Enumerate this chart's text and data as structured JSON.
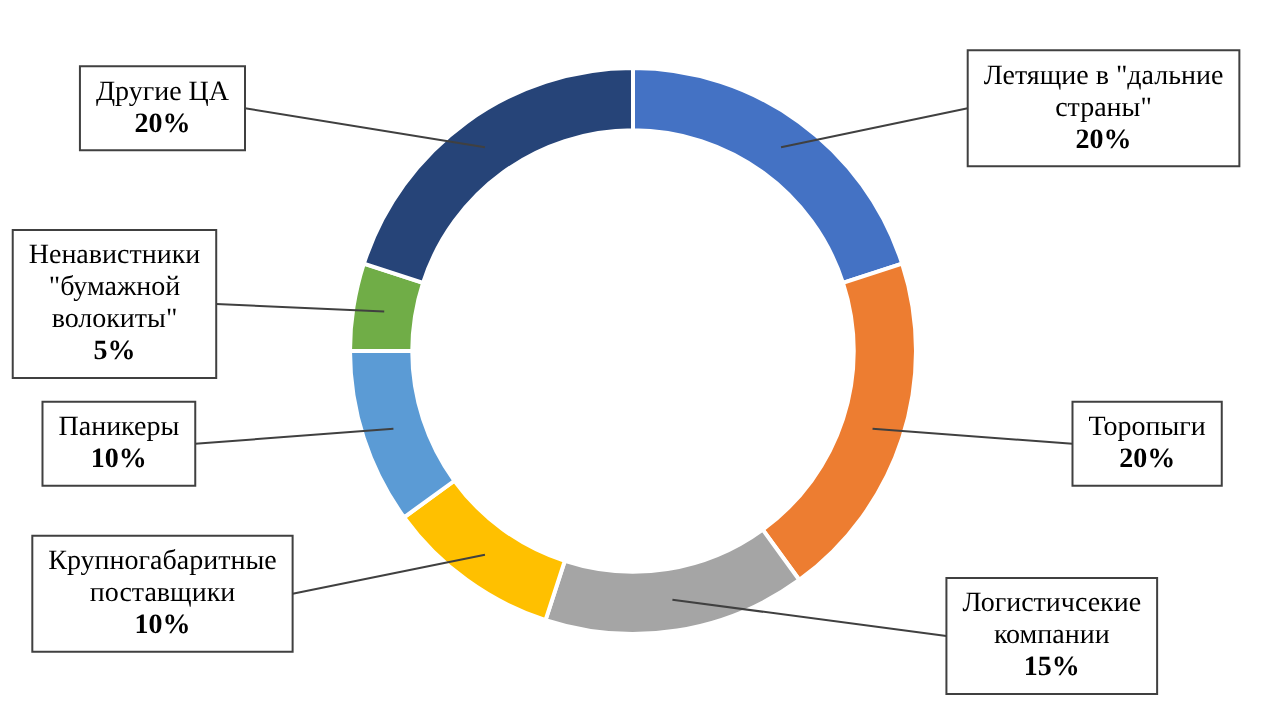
{
  "chart_data": {
    "type": "donut",
    "categories": [
      "Летящие в \"дальние страны\"",
      "Торопыги",
      "Логистичсекие компании",
      "Крупногабаритные поставщики",
      "Паникеры",
      "Ненавистники \"бумажной волокиты\"",
      "Другие ЦА"
    ],
    "values": [
      20,
      20,
      15,
      10,
      10,
      5,
      20
    ],
    "value_labels": [
      "20%",
      "20%",
      "15%",
      "10%",
      "10%",
      "5%",
      "20%"
    ],
    "colors": [
      "#4472c4",
      "#ed7d31",
      "#a5a5a5",
      "#ffc000",
      "#5b9bd5",
      "#70ad47",
      "#264478"
    ],
    "legend": false
  }
}
